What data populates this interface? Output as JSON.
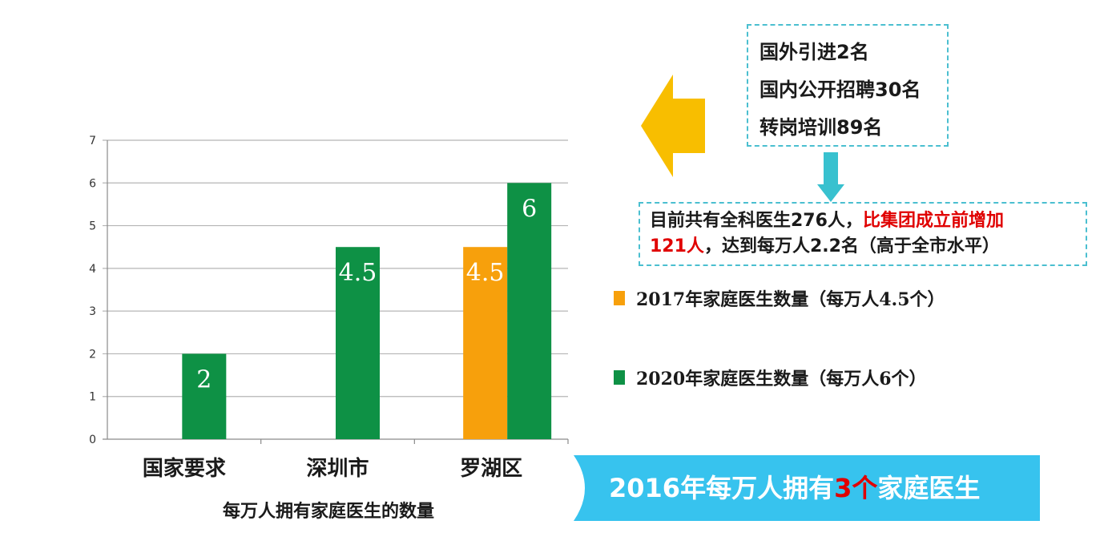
{
  "chart_data": {
    "type": "bar",
    "categories": [
      "国家要求",
      "深圳市",
      "罗湖区"
    ],
    "series": [
      {
        "name": "2017年家庭医生数量（每万人4.5个）",
        "color": "#f7a00c",
        "values": [
          null,
          null,
          4.5
        ],
        "labels": [
          "",
          "",
          "4.5"
        ]
      },
      {
        "name": "2020年家庭医生数量（每万人6个）",
        "color": "#0e9145",
        "values": [
          2,
          4.5,
          6
        ],
        "labels": [
          "2",
          "4.5",
          "6"
        ]
      }
    ],
    "ylim": [
      0,
      7
    ],
    "yticks": [
      "0",
      "1",
      "2",
      "3",
      "4",
      "5",
      "6",
      "7"
    ],
    "grid": true,
    "xlabel": "每万人拥有家庭医生的数量"
  },
  "info_box": {
    "lines": [
      "国外引进2名",
      "国内公开招聘30名",
      "转岗培训89名"
    ],
    "border_color": "#4bbfd0"
  },
  "summary": {
    "line1_part1": "目前共有全科医生276人，",
    "line1_red": "比集团成立前增加",
    "line2_red": "121人",
    "line2_part2": "，达到每万人2.2名（高于全市水平）"
  },
  "legend": {
    "item_2017": "2017年家庭医生数量（每万人4.5个）",
    "item_2020": "2020年家庭医生数量（每万人6个）"
  },
  "banner": {
    "part1": "2016年每万人拥有",
    "highlight": "3个",
    "part2": "家庭医生",
    "color": "#37c3ee"
  },
  "colors": {
    "orange": "#f7a00c",
    "green": "#0e9145",
    "arrow_yellow": "#f8be00",
    "arrow_teal": "#38c1cf",
    "accent_red": "#e00000"
  }
}
